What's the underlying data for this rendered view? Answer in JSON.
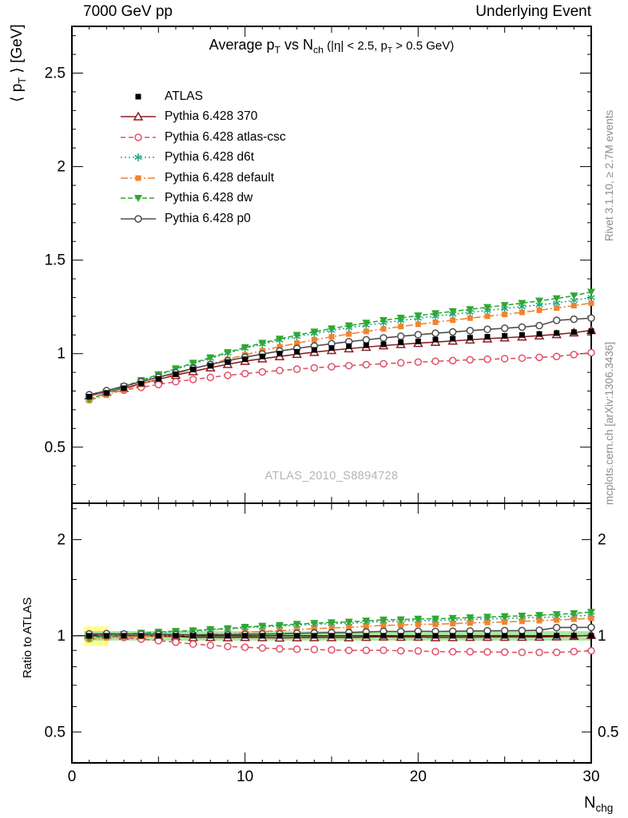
{
  "header": {
    "left": "7000 GeV pp",
    "right": "Underlying Event"
  },
  "side_notes": {
    "top": "Rivet 3.1.10, ≥ 2.7M events",
    "bottom": "mcplots.cern.ch [arXiv:1306.3436]"
  },
  "watermark": "ATLAS_2010_S8894728",
  "labels": {
    "title": {
      "p1": "Average p",
      "s1": "T",
      "p2": " vs N",
      "s2": "ch",
      "p3": " (|η| < 2.5, p",
      "s3": "T",
      "p4": " > 0.5 GeV)"
    },
    "ylabel": {
      "p1": "⟨ p",
      "s1": "T",
      "p2": " ⟩ [GeV]"
    },
    "xlabel": {
      "p1": "N",
      "s1": "chg"
    },
    "ratio": "Ratio to ATLAS"
  },
  "chart_data": {
    "type": "line",
    "title_text": "Average pT vs Nch (|η| < 2.5, pT > 0.5 GeV)",
    "xlabel_text": "Nchg",
    "ylabel_text": "<pT> [GeV]",
    "ratio_label_text": "Ratio to ATLAS",
    "legend_position": "top-left-inside",
    "x": [
      1,
      2,
      3,
      4,
      5,
      6,
      7,
      8,
      9,
      10,
      11,
      12,
      13,
      14,
      15,
      16,
      17,
      18,
      19,
      20,
      21,
      22,
      23,
      24,
      25,
      26,
      27,
      28,
      29,
      30
    ],
    "x_axis": {
      "min": 0,
      "max": 30,
      "major": [
        0,
        10,
        20,
        30
      ],
      "tick_labels": [
        "0",
        "10",
        "20",
        "30"
      ]
    },
    "y_axis": {
      "min": 0.2,
      "max": 2.75,
      "major": [
        0.5,
        1,
        1.5,
        2,
        2.5
      ],
      "minor_step": 0.1,
      "tick_labels": [
        "0.5",
        "1",
        "1.5",
        "2",
        "2.5"
      ]
    },
    "ratio_axis": {
      "min": 0.4,
      "max": 2.6,
      "scale": "log",
      "major": [
        0.5,
        1,
        2
      ],
      "minor": [
        0.6,
        0.7,
        0.8,
        0.9,
        1.5,
        2.5
      ],
      "tick_labels": [
        "0.5",
        "1",
        "2"
      ]
    },
    "ratio_reference": "ATLAS",
    "bands": {
      "yellow": {
        "x0": 0.7,
        "x1": 2.1,
        "y0": 0.93,
        "y1": 1.07,
        "color": "#ffff8c"
      },
      "green": {
        "x0": 0.7,
        "x1": 30,
        "y0": 0.966,
        "y1": 1.034,
        "color": "#a9e8a0"
      }
    },
    "series": [
      {
        "label": "ATLAS",
        "marker": "square-filled",
        "color": "#000000",
        "line": "none",
        "dash": "",
        "values": [
          0.77,
          0.79,
          0.815,
          0.84,
          0.865,
          0.89,
          0.915,
          0.935,
          0.955,
          0.97,
          0.985,
          1.0,
          1.01,
          1.02,
          1.03,
          1.04,
          1.045,
          1.05,
          1.06,
          1.065,
          1.075,
          1.08,
          1.085,
          1.09,
          1.095,
          1.1,
          1.105,
          1.11,
          1.115,
          1.12
        ]
      },
      {
        "label": "Pythia 6.428 370",
        "marker": "triangle-open",
        "color": "#8b1f24",
        "line": "solid",
        "dash": "",
        "values": [
          0.775,
          0.795,
          0.815,
          0.84,
          0.862,
          0.885,
          0.905,
          0.925,
          0.943,
          0.96,
          0.973,
          0.985,
          0.997,
          1.008,
          1.018,
          1.027,
          1.035,
          1.043,
          1.05,
          1.056,
          1.062,
          1.068,
          1.074,
          1.08,
          1.085,
          1.09,
          1.096,
          1.103,
          1.112,
          1.125
        ]
      },
      {
        "label": "Pythia 6.428 atlas-csc",
        "marker": "circle-open",
        "color": "#e0506a",
        "line": "dashed",
        "dash": "6,4",
        "values": [
          0.78,
          0.79,
          0.805,
          0.82,
          0.835,
          0.85,
          0.862,
          0.873,
          0.884,
          0.893,
          0.902,
          0.91,
          0.917,
          0.924,
          0.93,
          0.936,
          0.941,
          0.946,
          0.951,
          0.955,
          0.959,
          0.963,
          0.967,
          0.97,
          0.973,
          0.976,
          0.98,
          0.985,
          0.995,
          1.005
        ]
      },
      {
        "label": "Pythia 6.428 d6t",
        "marker": "asterisk",
        "color": "#2ba98c",
        "line": "dotted",
        "dash": "2,3",
        "values": [
          0.755,
          0.787,
          0.82,
          0.853,
          0.885,
          0.916,
          0.946,
          0.975,
          1.002,
          1.028,
          1.051,
          1.072,
          1.091,
          1.108,
          1.124,
          1.139,
          1.152,
          1.165,
          1.177,
          1.189,
          1.2,
          1.211,
          1.221,
          1.231,
          1.241,
          1.251,
          1.261,
          1.271,
          1.285,
          1.3
        ]
      },
      {
        "label": "Pythia 6.428 default",
        "marker": "square-filled",
        "color": "#f08430",
        "line": "dash-dot",
        "dash": "9,3,2,3",
        "values": [
          0.75,
          0.778,
          0.807,
          0.836,
          0.864,
          0.892,
          0.919,
          0.945,
          0.97,
          0.994,
          1.016,
          1.037,
          1.056,
          1.074,
          1.09,
          1.105,
          1.119,
          1.132,
          1.145,
          1.157,
          1.168,
          1.179,
          1.19,
          1.2,
          1.21,
          1.221,
          1.232,
          1.244,
          1.257,
          1.27
        ]
      },
      {
        "label": "Pythia 6.428 dw",
        "marker": "triangle-down-filled",
        "color": "#2fa82f",
        "line": "dashed",
        "dash": "6,3",
        "values": [
          0.757,
          0.79,
          0.824,
          0.857,
          0.889,
          0.92,
          0.95,
          0.979,
          1.007,
          1.033,
          1.057,
          1.079,
          1.099,
          1.117,
          1.134,
          1.15,
          1.164,
          1.178,
          1.191,
          1.203,
          1.215,
          1.226,
          1.237,
          1.248,
          1.259,
          1.27,
          1.282,
          1.295,
          1.31,
          1.33
        ]
      },
      {
        "label": "Pythia 6.428 p0",
        "marker": "circle-open",
        "color": "#4d4d4d",
        "line": "solid",
        "dash": "",
        "values": [
          0.78,
          0.802,
          0.826,
          0.85,
          0.874,
          0.898,
          0.921,
          0.942,
          0.962,
          0.981,
          0.998,
          1.014,
          1.028,
          1.041,
          1.053,
          1.064,
          1.074,
          1.084,
          1.093,
          1.101,
          1.109,
          1.116,
          1.123,
          1.13,
          1.136,
          1.142,
          1.15,
          1.178,
          1.184,
          1.19
        ]
      }
    ]
  }
}
